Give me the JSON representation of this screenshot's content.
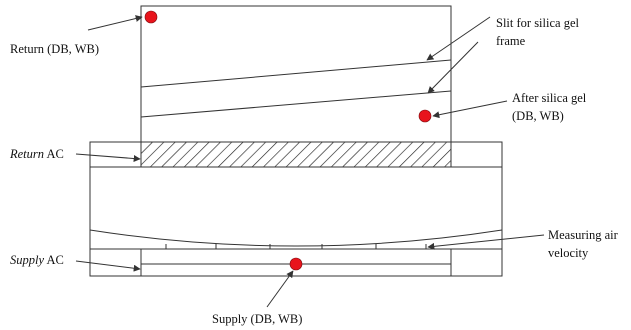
{
  "labels": {
    "return": "Return (DB, WB)",
    "slit_line1": "Slit for silica gel",
    "slit_line2": "frame",
    "after_line1": "After silica gel",
    "after_line2": "(DB, WB)",
    "return_ac_italic": "Return",
    "return_ac_rest": " AC",
    "measuring_line1": "Measuring air",
    "measuring_line2": "velocity",
    "supply_ac_italic": "Supply",
    "supply_ac_rest": " AC",
    "supply": "Supply (DB, WB)"
  },
  "colors": {
    "sensor": "#e8141c",
    "line": "#333333"
  }
}
